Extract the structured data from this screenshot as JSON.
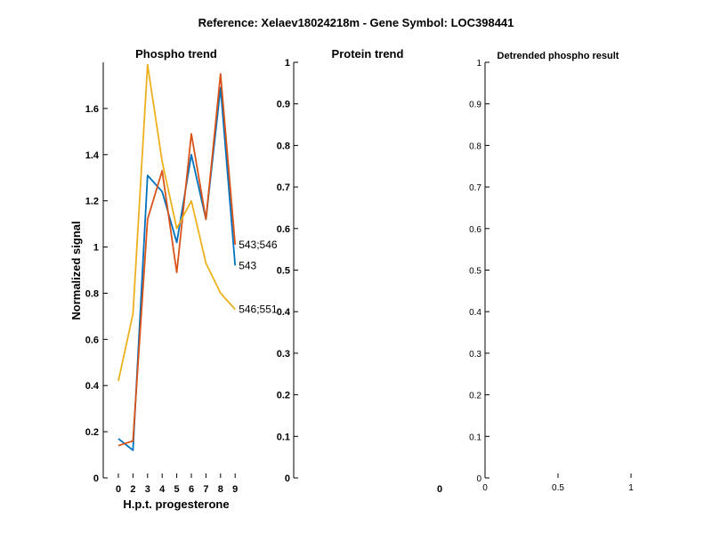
{
  "figure_title": "Reference:  Xelaev18024218m - Gene Symbol:  LOC398441",
  "chart_data": [
    {
      "id": "phospho",
      "type": "line",
      "title": "Phospho trend",
      "xlabel": "H.p.t. progesterone",
      "ylabel": "Normalized signal",
      "x_tick_labels": [
        "0",
        "2",
        "3",
        "4",
        "5",
        "6",
        "7",
        "8",
        "9"
      ],
      "y_ticks": [
        "0",
        "0.2",
        "0.4",
        "0.6",
        "0.8",
        "1",
        "1.2",
        "1.4",
        "1.6"
      ],
      "ylim": [
        0,
        1.8
      ],
      "grid": false,
      "series": [
        {
          "name": "543",
          "color": "#0072BD",
          "values": [
            0.17,
            0.12,
            1.31,
            1.24,
            1.02,
            1.4,
            1.12,
            1.69,
            0.92
          ]
        },
        {
          "name": "543;546",
          "color": "#D95319",
          "values": [
            0.14,
            0.16,
            1.12,
            1.33,
            0.89,
            1.49,
            1.12,
            1.75,
            1.01
          ]
        },
        {
          "name": "546;551",
          "color": "#EDB120",
          "values": [
            0.42,
            0.71,
            1.79,
            1.37,
            1.08,
            1.2,
            0.93,
            0.8,
            0.73
          ]
        }
      ]
    },
    {
      "id": "protein",
      "type": "line",
      "title": "Protein trend",
      "xlabel": "",
      "ylabel": "",
      "x_tick_labels": [
        "0"
      ],
      "y_ticks": [
        "0",
        "0.1",
        "0.2",
        "0.3",
        "0.4",
        "0.5",
        "0.6",
        "0.7",
        "0.8",
        "0.9",
        "1"
      ],
      "ylim": [
        0,
        1
      ],
      "grid": false,
      "series": []
    },
    {
      "id": "detrended",
      "type": "line",
      "title": "Detrended phospho result",
      "xlabel": "",
      "ylabel": "",
      "x_tick_labels": [
        "0",
        "0.5",
        "1"
      ],
      "xlim": [
        0,
        1
      ],
      "y_ticks": [
        "0",
        "0.1",
        "0.2",
        "0.3",
        "0.4",
        "0.5",
        "0.6",
        "0.7",
        "0.8",
        "0.9",
        "1"
      ],
      "ylim": [
        0,
        1
      ],
      "grid": false,
      "series": []
    }
  ]
}
